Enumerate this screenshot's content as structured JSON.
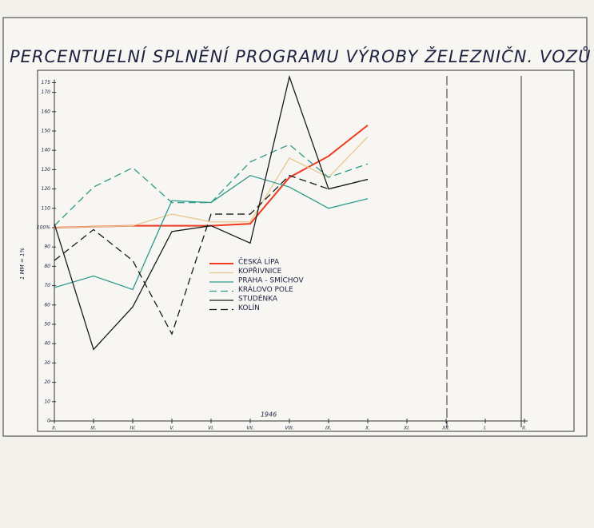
{
  "chart_data": {
    "type": "line",
    "title": "PERCENTUELNÍ SPLNĚNÍ PROGRAMU VÝROBY ŽELEZNIČN. VOZŮ",
    "y_label": "1 MM = 1%",
    "annotation": "1946",
    "categories": [
      "II.",
      "III.",
      "IV.",
      "V.",
      "VI.",
      "VII.",
      "VIII.",
      "IX.",
      "X.",
      "XI.",
      "XII.",
      "I.",
      "II."
    ],
    "series": [
      {
        "name": "ČESKÁ LÍPA",
        "color": "#f03a20",
        "dash": false,
        "values": [
          100,
          100.5,
          101,
          101,
          101,
          102,
          126,
          137,
          153,
          null,
          null,
          null,
          null
        ]
      },
      {
        "name": "KOPŘIVNICE",
        "color": "#e8c890",
        "dash": false,
        "values": [
          100,
          100.5,
          101,
          107,
          103,
          103,
          136,
          126,
          147,
          null,
          null,
          null,
          null
        ]
      },
      {
        "name": "PRAHA - SMÍCHOV",
        "color": "#2f9a8a",
        "dash": false,
        "values": [
          69,
          75,
          68,
          114,
          113,
          127,
          121,
          110,
          115,
          null,
          null,
          null,
          null
        ]
      },
      {
        "name": "KRÁLOVO POLE",
        "color": "#2f9a8a",
        "dash": true,
        "values": [
          101,
          121,
          131,
          113,
          113,
          134,
          143,
          126,
          133,
          null,
          null,
          null,
          null
        ]
      },
      {
        "name": "STUDÉNKA",
        "color": "#1a1a1a",
        "dash": false,
        "values": [
          102,
          37,
          59,
          98,
          101,
          92,
          178,
          120,
          125,
          null,
          null,
          null,
          null
        ]
      },
      {
        "name": "KOLÍN",
        "color": "#1a1a1a",
        "dash": true,
        "values": [
          83,
          99,
          83,
          45,
          107,
          107,
          127,
          120,
          125,
          null,
          null,
          null,
          null
        ]
      }
    ],
    "ylim": [
      0,
      180
    ],
    "yticks": [
      0,
      10,
      20,
      30,
      40,
      50,
      60,
      70,
      80,
      90,
      {
        "value": 100,
        "label": "100%"
      },
      110,
      120,
      130,
      140,
      150,
      160,
      170,
      175
    ]
  }
}
